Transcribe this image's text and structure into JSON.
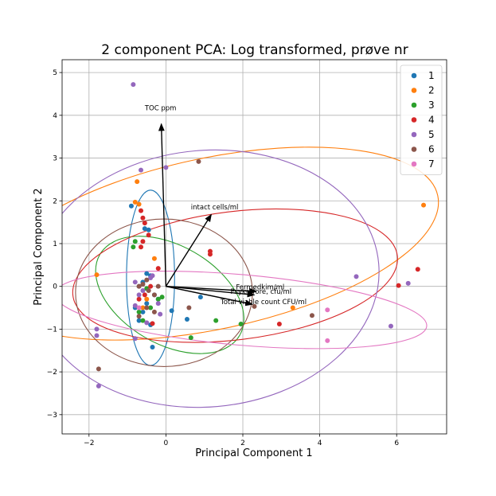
{
  "chart_data": {
    "type": "scatter",
    "title": "2 component PCA: Log transformed, prøve nr",
    "xlabel": "Principal Component 1",
    "ylabel": "Principal Component 2",
    "xlim": [
      -2.7,
      7.3
    ],
    "ylim": [
      -3.45,
      5.3
    ],
    "xticks": [
      -2,
      0,
      2,
      4,
      6
    ],
    "yticks": [
      -3,
      -2,
      -1,
      0,
      1,
      2,
      3,
      4,
      5
    ],
    "grid": true,
    "legend_position": "top-right",
    "series": [
      {
        "name": "1",
        "color": "#1f77b4",
        "points": [
          [
            -0.9,
            1.88
          ],
          [
            -0.55,
            1.35
          ],
          [
            -0.45,
            1.32
          ],
          [
            -0.5,
            0.3
          ],
          [
            -0.4,
            0.25
          ],
          [
            -0.6,
            0.1
          ],
          [
            -0.7,
            0.0
          ],
          [
            -0.3,
            -0.2
          ],
          [
            -0.5,
            -0.4
          ],
          [
            -0.6,
            -0.6
          ],
          [
            -0.7,
            -0.8
          ],
          [
            -0.4,
            -0.9
          ],
          [
            -0.35,
            -1.42
          ],
          [
            0.15,
            -0.57
          ],
          [
            0.55,
            -0.77
          ],
          [
            0.9,
            -0.25
          ],
          [
            -0.2,
            -0.3
          ],
          [
            -0.8,
            -0.5
          ]
        ],
        "ellipse": {
          "cx": -0.4,
          "cy": 0.2,
          "w": 1.25,
          "h": 4.1,
          "angle": 0
        }
      },
      {
        "name": "2",
        "color": "#ff7f0e",
        "points": [
          [
            -0.8,
            1.97
          ],
          [
            -0.75,
            2.45
          ],
          [
            -0.7,
            1.92
          ],
          [
            -0.3,
            0.65
          ],
          [
            -1.8,
            0.27
          ],
          [
            6.7,
            1.9
          ],
          [
            3.3,
            -0.5
          ],
          [
            -0.5,
            -0.3
          ],
          [
            -0.6,
            -0.5
          ]
        ],
        "ellipse": {
          "cx": 1.2,
          "cy": 1.0,
          "w": 12.0,
          "h": 4.0,
          "angle": 12
        }
      },
      {
        "name": "3",
        "color": "#2ca02c",
        "points": [
          [
            -0.8,
            1.05
          ],
          [
            -0.85,
            0.92
          ],
          [
            -0.5,
            -0.05
          ],
          [
            -0.2,
            -0.3
          ],
          [
            -0.1,
            -0.25
          ],
          [
            -0.6,
            -0.8
          ],
          [
            1.3,
            -0.8
          ],
          [
            1.95,
            -0.88
          ],
          [
            0.65,
            -1.2
          ],
          [
            -0.7,
            -0.6
          ],
          [
            -0.4,
            -0.5
          ]
        ],
        "ellipse": {
          "cx": 0.1,
          "cy": -0.2,
          "w": 4.2,
          "h": 2.3,
          "angle": -30
        }
      },
      {
        "name": "4",
        "color": "#d62728",
        "points": [
          [
            -0.65,
            1.77
          ],
          [
            -0.6,
            1.6
          ],
          [
            -0.55,
            1.48
          ],
          [
            -0.45,
            1.2
          ],
          [
            -0.6,
            1.05
          ],
          [
            -0.65,
            0.92
          ],
          [
            -0.2,
            0.42
          ],
          [
            -0.4,
            0.0
          ],
          [
            1.15,
            0.82
          ],
          [
            1.15,
            0.75
          ],
          [
            2.95,
            -0.88
          ],
          [
            6.05,
            0.02
          ],
          [
            6.55,
            0.4
          ],
          [
            -0.35,
            -0.87
          ],
          [
            -0.55,
            -0.2
          ],
          [
            -0.7,
            -0.3
          ]
        ],
        "ellipse": {
          "cx": 1.8,
          "cy": 0.25,
          "w": 8.5,
          "h": 3.0,
          "angle": 7
        }
      },
      {
        "name": "5",
        "color": "#9467bd",
        "points": [
          [
            -0.85,
            4.72
          ],
          [
            -0.65,
            2.72
          ],
          [
            0.0,
            2.78
          ],
          [
            -0.4,
            0.2
          ],
          [
            -0.35,
            0.25
          ],
          [
            -0.8,
            0.1
          ],
          [
            -0.7,
            -0.2
          ],
          [
            -0.8,
            -0.45
          ],
          [
            -0.2,
            -0.4
          ],
          [
            -0.5,
            -0.85
          ],
          [
            -0.8,
            -1.22
          ],
          [
            -1.8,
            -1.0
          ],
          [
            -1.8,
            -1.15
          ],
          [
            -1.75,
            -2.33
          ],
          [
            4.95,
            0.23
          ],
          [
            5.85,
            -0.93
          ],
          [
            6.3,
            0.07
          ],
          [
            -0.15,
            -0.65
          ],
          [
            -0.6,
            -0.1
          ]
        ],
        "ellipse": {
          "cx": 1.05,
          "cy": 0.18,
          "w": 9.0,
          "h": 6.0,
          "angle": 5
        }
      },
      {
        "name": "6",
        "color": "#8c564b",
        "points": [
          [
            0.85,
            2.92
          ],
          [
            -1.75,
            -1.93
          ],
          [
            0.6,
            -0.5
          ],
          [
            2.3,
            -0.47
          ],
          [
            3.8,
            -0.68
          ],
          [
            -0.3,
            -0.6
          ],
          [
            -0.7,
            0.0
          ],
          [
            -0.5,
            -0.5
          ],
          [
            -0.45,
            -0.1
          ],
          [
            -0.6,
            0.05
          ],
          [
            -0.5,
            0.15
          ],
          [
            -0.7,
            -0.7
          ],
          [
            -0.2,
            0.0
          ],
          [
            -0.3,
            -0.2
          ]
        ],
        "ellipse": {
          "cx": -0.05,
          "cy": -0.15,
          "w": 4.6,
          "h": 3.45,
          "angle": 0
        }
      },
      {
        "name": "7",
        "color": "#e377c2",
        "points": [
          [
            4.2,
            -0.55
          ],
          [
            4.2,
            -1.27
          ],
          [
            -0.7,
            -0.5
          ]
        ],
        "ellipse": {
          "cx": 1.95,
          "cy": -0.55,
          "w": 9.7,
          "h": 1.65,
          "angle": -5
        }
      }
    ],
    "loadings": [
      {
        "label": "TOC ppm",
        "x": -0.12,
        "y": 3.8,
        "label_x": -0.55,
        "label_y": 4.12
      },
      {
        "label": "intact cells/ml",
        "x": 1.18,
        "y": 1.68,
        "label_x": 0.65,
        "label_y": 1.8
      },
      {
        "label": "Fermedkim/ml",
        "x": 2.35,
        "y": -0.12,
        "label_x": 1.82,
        "label_y": -0.07
      },
      {
        "label": "Psykrofore, cfu/ml",
        "x": 2.3,
        "y": -0.2,
        "label_x": 1.68,
        "label_y": -0.17
      },
      {
        "label": "Total viable count CFU/ml",
        "x": 2.25,
        "y": -0.42,
        "label_x": 1.42,
        "label_y": -0.42
      }
    ]
  }
}
